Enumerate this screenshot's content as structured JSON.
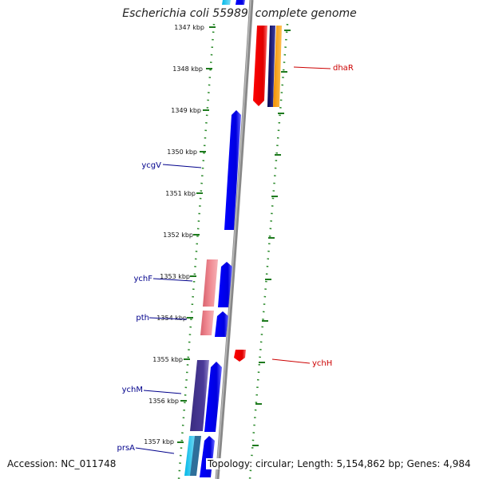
{
  "title": "Escherichia coli 55989, complete genome",
  "accession": "Accession: NC_011748",
  "summary": "Topology: circular; Length: 5,154,862 bp; Genes: 4,984",
  "colors": {
    "backbone": "#888888",
    "tick_dots": "#2a8a2a",
    "label_forward": "#00008b",
    "label_reverse": "#cc0000"
  },
  "kbp_ticks": [
    "1347 kbp",
    "1348 kbp",
    "1349 kbp",
    "1350 kbp",
    "1351 kbp",
    "1352 kbp",
    "1353 kbp",
    "1354 kbp",
    "1355 kbp",
    "1356 kbp",
    "1357 kbp"
  ],
  "gene_labels": [
    {
      "text": "ycgV",
      "side": "left"
    },
    {
      "text": "ychF",
      "side": "left"
    },
    {
      "text": "pth",
      "side": "left"
    },
    {
      "text": "ychM",
      "side": "left"
    },
    {
      "text": "prsA",
      "side": "left"
    },
    {
      "text": "dhaR",
      "side": "right"
    },
    {
      "text": "ychH",
      "side": "right"
    }
  ]
}
